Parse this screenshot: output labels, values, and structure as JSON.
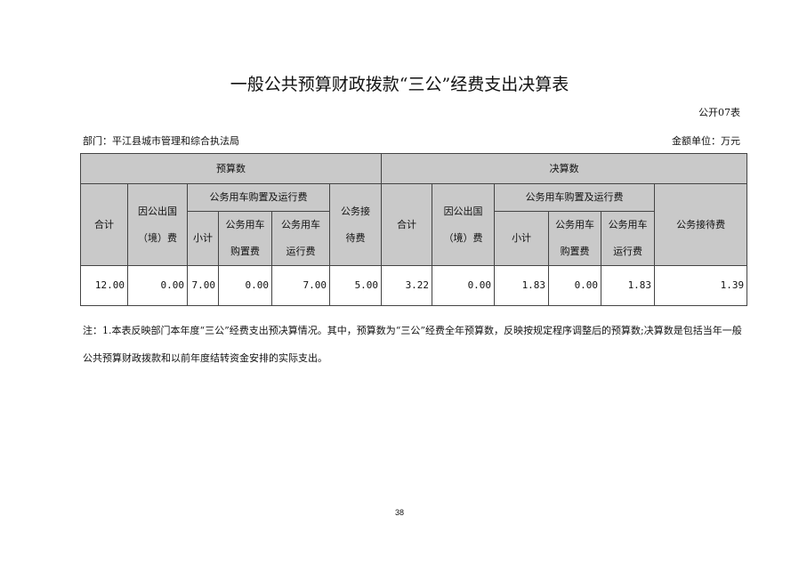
{
  "title": "一般公共预算财政拨款“三公”经费支出决算表",
  "form_code": "公开07表",
  "department": "部门：平江县城市管理和综合执法局",
  "unit": "金额单位：万元",
  "table": {
    "budget_header": "预算数",
    "final_header": "决算数",
    "total": "合计",
    "abroad_line1": "因公出国",
    "abroad_line2": "（境）费",
    "vehicle_group": "公务用车购置及运行费",
    "subtotal": "小计",
    "purchase_line1": "公务用车",
    "purchase_line2": "购置费",
    "running_line1": "公务用车",
    "running_line2": "运行费",
    "reception_short_line1": "公务接",
    "reception_short_line2": "待费",
    "reception": "公务接待费",
    "budget_values": [
      "12.00",
      "0.00",
      "7.00",
      "0.00",
      "7.00",
      "5.00"
    ],
    "final_values": [
      "3.22",
      "0.00",
      "1.83",
      "0.00",
      "1.83",
      "1.39"
    ]
  },
  "note": "注：1.本表反映部门本年度“三公”经费支出预决算情况。其中，预算数为“三公”经费全年预算数，反映按规定程序调整后的预算数;决算数是包括当年一般公共预算财政拨款和以前年度结转资金安排的实际支出。",
  "page_number": "38"
}
